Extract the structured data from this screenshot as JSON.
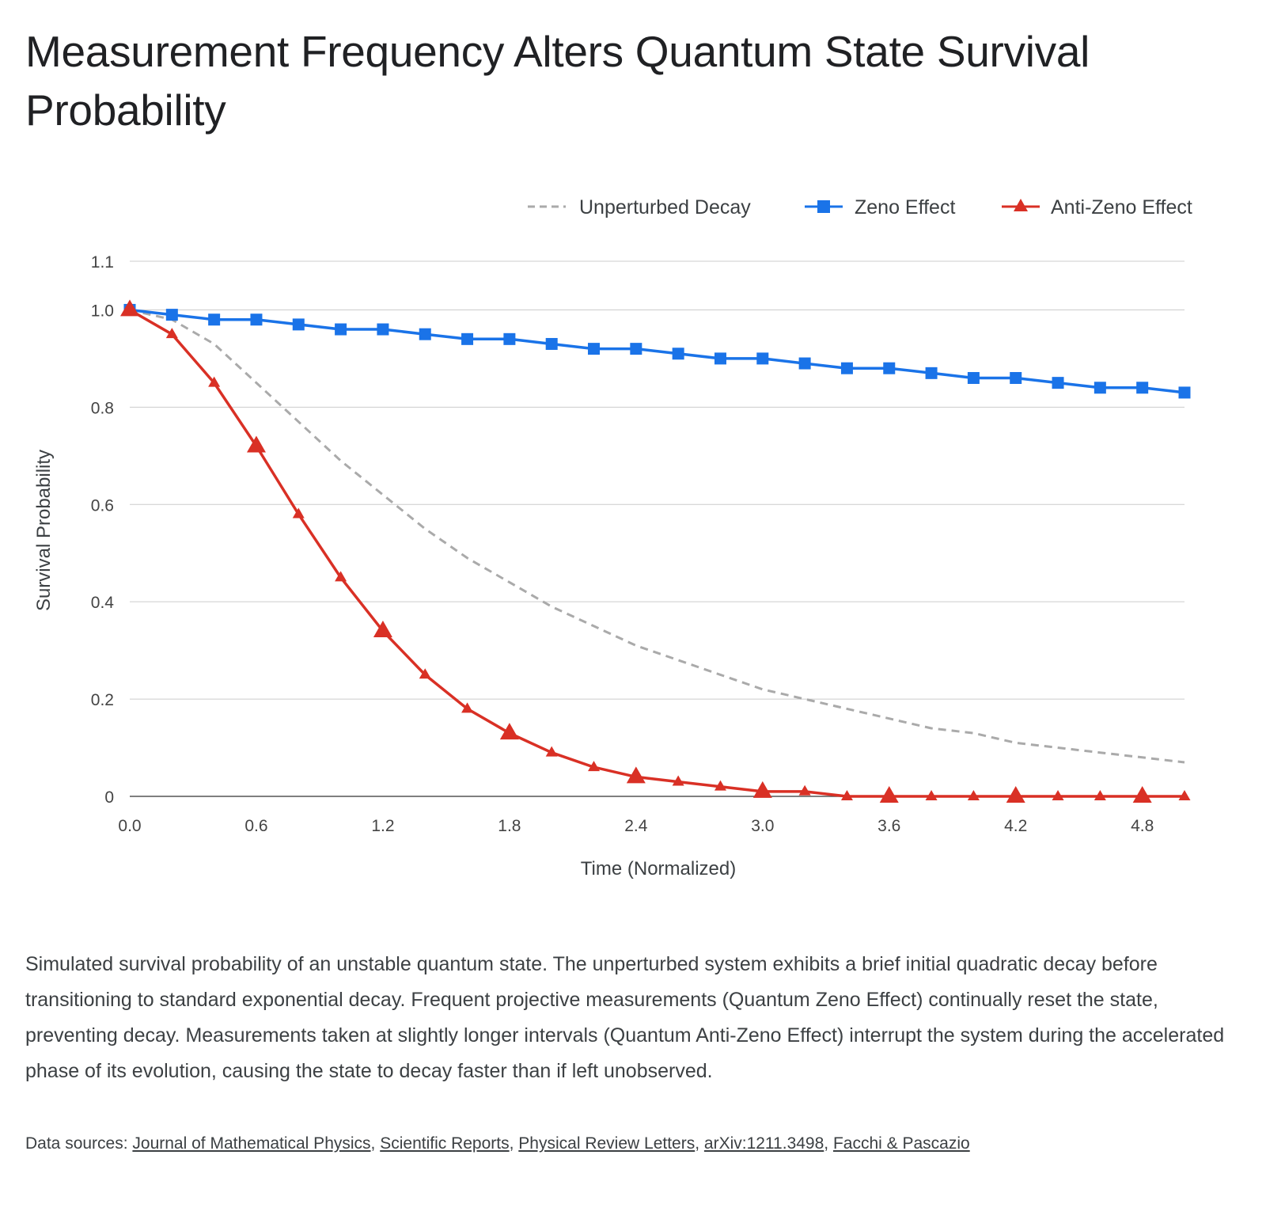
{
  "title": "Measurement Frequency Alters Quantum State Survival Probability",
  "caption": "Simulated survival probability of an unstable quantum state. The unperturbed system exhibits a brief initial quadratic decay before transitioning to standard exponential decay. Frequent projective measurements (Quantum Zeno Effect) continually reset the state, preventing decay. Measurements taken at slightly longer intervals (Quantum Anti-Zeno Effect) interrupt the system during the accelerated phase of its evolution, causing the state to decay faster than if left unobserved.",
  "sources": {
    "label": "Data sources:",
    "links": [
      "Journal of Mathematical Physics",
      "Scientific Reports",
      "Physical Review Letters",
      "arXiv:1211.3498",
      "Facchi & Pascazio"
    ]
  },
  "chart_data": {
    "type": "line",
    "xlabel": "Time (Normalized)",
    "ylabel": "Survival Probability",
    "xlim": [
      0,
      5.0
    ],
    "ylim": [
      0,
      1.1
    ],
    "xticks": [
      "0.0",
      "0.6",
      "1.2",
      "1.8",
      "2.4",
      "3.0",
      "3.6",
      "4.2",
      "4.8"
    ],
    "yticks": [
      "0",
      "0.2",
      "0.4",
      "0.6",
      "0.8",
      "1.0",
      "1.1"
    ],
    "grid": true,
    "legend_position": "top-right",
    "x": [
      0.0,
      0.2,
      0.4,
      0.6,
      0.8,
      1.0,
      1.2,
      1.4,
      1.6,
      1.8,
      2.0,
      2.2,
      2.4,
      2.6,
      2.8,
      3.0,
      3.2,
      3.4,
      3.6,
      3.8,
      4.0,
      4.2,
      4.4,
      4.6,
      4.8,
      5.0
    ],
    "series": [
      {
        "name": "Unperturbed Decay",
        "color": "#aaaaaa",
        "style": "dashed",
        "marker": "none",
        "values": [
          1.0,
          0.98,
          0.93,
          0.85,
          0.77,
          0.69,
          0.62,
          0.55,
          0.49,
          0.44,
          0.39,
          0.35,
          0.31,
          0.28,
          0.25,
          0.22,
          0.2,
          0.18,
          0.16,
          0.14,
          0.13,
          0.11,
          0.1,
          0.09,
          0.08,
          0.07
        ]
      },
      {
        "name": "Zeno Effect",
        "color": "#1a73e8",
        "style": "solid",
        "marker": "square",
        "values": [
          1.0,
          0.99,
          0.98,
          0.98,
          0.97,
          0.96,
          0.96,
          0.95,
          0.94,
          0.94,
          0.93,
          0.92,
          0.92,
          0.91,
          0.9,
          0.9,
          0.89,
          0.88,
          0.88,
          0.87,
          0.86,
          0.86,
          0.85,
          0.84,
          0.84,
          0.83
        ]
      },
      {
        "name": "Anti-Zeno Effect",
        "color": "#d93025",
        "style": "solid",
        "marker": "triangle",
        "values": [
          1.0,
          0.95,
          0.85,
          0.72,
          0.58,
          0.45,
          0.34,
          0.25,
          0.18,
          0.13,
          0.09,
          0.06,
          0.04,
          0.03,
          0.02,
          0.01,
          0.01,
          0.0,
          0.0,
          0.0,
          0.0,
          0.0,
          0.0,
          0.0,
          0.0,
          0.0
        ]
      }
    ]
  }
}
